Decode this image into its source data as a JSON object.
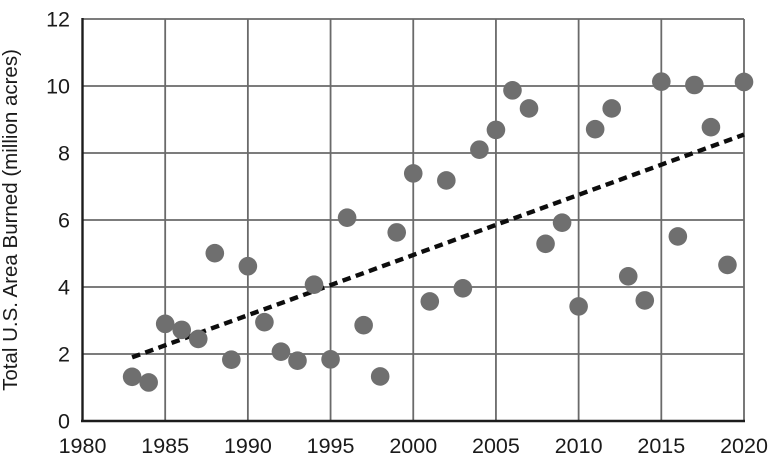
{
  "chart_data": {
    "type": "scatter",
    "title": "",
    "xlabel": "",
    "ylabel": "Total U.S. Area Burned (million acres)",
    "xlim": [
      1980,
      2020
    ],
    "ylim": [
      0,
      12
    ],
    "x_ticks": [
      1980,
      1985,
      1990,
      1995,
      2000,
      2005,
      2010,
      2015,
      2020
    ],
    "y_ticks": [
      0,
      2,
      4,
      6,
      8,
      10,
      12
    ],
    "grid": true,
    "legend": false,
    "x": [
      1983,
      1984,
      1985,
      1986,
      1987,
      1988,
      1989,
      1990,
      1991,
      1992,
      1993,
      1994,
      1995,
      1996,
      1997,
      1998,
      1999,
      2000,
      2001,
      2002,
      2003,
      2004,
      2005,
      2006,
      2007,
      2008,
      2009,
      2010,
      2011,
      2012,
      2013,
      2014,
      2015,
      2016,
      2017,
      2018,
      2019,
      2020
    ],
    "y": [
      1.32,
      1.15,
      2.9,
      2.72,
      2.45,
      5.01,
      1.83,
      4.62,
      2.95,
      2.07,
      1.8,
      4.07,
      1.84,
      6.07,
      2.86,
      1.33,
      5.63,
      7.39,
      3.57,
      7.18,
      3.96,
      8.1,
      8.69,
      9.87,
      9.33,
      5.29,
      5.92,
      3.42,
      8.71,
      9.33,
      4.32,
      3.6,
      10.13,
      5.51,
      10.03,
      8.77,
      4.66,
      10.12
    ],
    "trendline": {
      "style": "dashed",
      "x1": 1983,
      "y1": 1.9,
      "x2": 2020,
      "y2": 8.55
    },
    "colors": {
      "point": "#6f6f6f",
      "trend": "#0d0d0d",
      "grid": "#6a6a6a",
      "axis": "#1c1c1c",
      "text": "#1a1a1a",
      "background": "#ffffff"
    }
  }
}
